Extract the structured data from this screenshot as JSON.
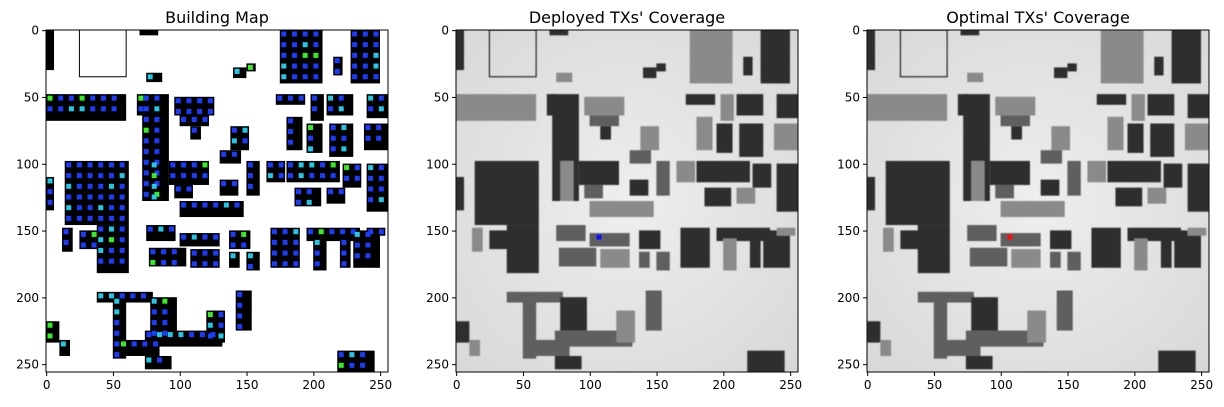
{
  "figure": {
    "panels": [
      {
        "id": "building-map",
        "title": "Building Map",
        "kind": "building-map"
      },
      {
        "id": "deployed-coverage",
        "title": "Deployed TXs' Coverage",
        "kind": "coverage",
        "marker_color": "#1010ff"
      },
      {
        "id": "optimal-coverage",
        "title": "Optimal TXs' Coverage",
        "kind": "coverage",
        "marker_color": "#ff1010"
      }
    ],
    "x_ticks": [
      "0",
      "50",
      "100",
      "150",
      "200",
      "250"
    ],
    "y_ticks": [
      "0",
      "50",
      "100",
      "150",
      "200",
      "250"
    ],
    "axis_range": [
      0,
      256
    ],
    "tx_marker_position": [
      107,
      155
    ],
    "colors": {
      "building": "#000000",
      "free_space": "#ffffff",
      "candidate_blue": "#1a3cff",
      "candidate_cyan": "#22c8e8",
      "candidate_green": "#33ee22",
      "coverage_background": "#e2e2e2",
      "coverage_building_dark": "#2e2e2e",
      "coverage_building_mid": "#5e5e5e",
      "coverage_building_light": "#8a8a8a"
    }
  }
}
